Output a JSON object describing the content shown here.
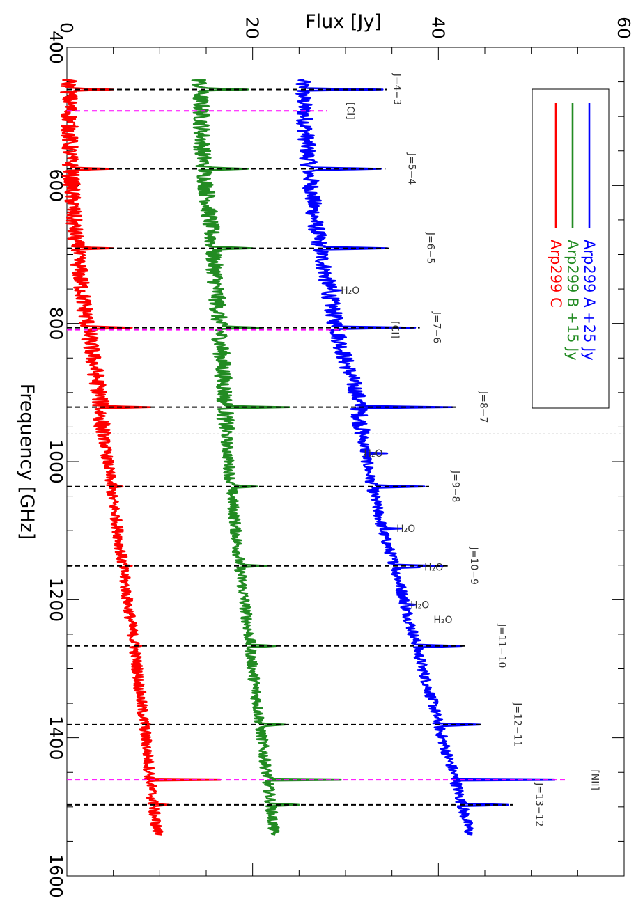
{
  "chart_data": {
    "type": "line",
    "orientation": "rotated 90 degrees clockwise (frequency runs top to bottom, flux runs left to right)",
    "xlabel": "Frequency [GHz]",
    "ylabel": "Flux [Jy]",
    "xlim": [
      400,
      1600
    ],
    "ylim": [
      0,
      60
    ],
    "x_ticks": [
      "400",
      "600",
      "800",
      "1000",
      "1200",
      "1400",
      "1600"
    ],
    "y_ticks": [
      "0",
      "20",
      "40",
      "60"
    ],
    "grid": false,
    "legend_position": "top-right",
    "series": [
      {
        "name": "Arp299 A +25 Jy",
        "color": "#0000ff",
        "offset": 25,
        "x": [
          450,
          500,
          550,
          600,
          650,
          700,
          750,
          800,
          850,
          900,
          950,
          1000,
          1050,
          1100,
          1150,
          1200,
          1250,
          1300,
          1350,
          1400,
          1450,
          1500,
          1540
        ],
        "y": [
          25.3,
          25.6,
          25.9,
          26.3,
          26.7,
          27.4,
          28.2,
          28.9,
          29.9,
          31.2,
          31.7,
          32.3,
          33.1,
          34.0,
          35.3,
          36.3,
          37.3,
          38.3,
          39.4,
          40.4,
          41.6,
          42.6,
          43.4
        ]
      },
      {
        "name": "Arp299 B +15 Jy",
        "color": "#228b22",
        "offset": 15,
        "x": [
          450,
          500,
          550,
          600,
          650,
          700,
          750,
          800,
          850,
          900,
          950,
          1000,
          1050,
          1100,
          1150,
          1200,
          1250,
          1300,
          1350,
          1400,
          1450,
          1500,
          1540
        ],
        "y": [
          14.3,
          14.5,
          14.6,
          15.0,
          15.4,
          15.8,
          16.1,
          16.4,
          16.7,
          17.0,
          17.1,
          17.4,
          17.8,
          18.2,
          18.6,
          19.1,
          19.6,
          20.0,
          20.5,
          21.0,
          21.5,
          22.0,
          22.3
        ]
      },
      {
        "name": "Arp299 C",
        "color": "#ff0000",
        "offset": 0,
        "x": [
          450,
          500,
          550,
          600,
          650,
          700,
          750,
          800,
          850,
          900,
          950,
          1000,
          1050,
          1100,
          1150,
          1200,
          1250,
          1300,
          1350,
          1400,
          1450,
          1500,
          1540
        ],
        "y": [
          0.2,
          0.3,
          0.3,
          0.5,
          0.7,
          1.1,
          1.6,
          2.2,
          2.8,
          3.5,
          3.8,
          4.4,
          4.9,
          5.5,
          6.0,
          6.5,
          7.1,
          7.6,
          8.0,
          8.5,
          8.9,
          9.3,
          9.8
        ]
      }
    ],
    "co_lines": [
      {
        "label": "J=4−3",
        "freq": 461,
        "peaks": {
          "A": 34.0,
          "B": 19.5,
          "C": 5.0
        },
        "label_flux": 35.2
      },
      {
        "label": "J=5−4",
        "freq": 576,
        "peaks": {
          "A": 33.8,
          "B": 19.5,
          "C": 5.0
        },
        "label_flux": 36.8
      },
      {
        "label": "J=6−5",
        "freq": 691,
        "peaks": {
          "A": 34.5,
          "B": 20.0,
          "C": 5.0
        },
        "label_flux": 38.8
      },
      {
        "label": "J=7−6",
        "freq": 806,
        "peaks": {
          "A": 37.5,
          "B": 21.0,
          "C": 7.0
        },
        "label_flux": 39.5
      },
      {
        "label": "J=8−7",
        "freq": 921,
        "peaks": {
          "A": 41.5,
          "B": 24.0,
          "C": 9.0
        },
        "label_flux": 44.5
      },
      {
        "label": "J=9−8",
        "freq": 1036,
        "peaks": {
          "A": 38.5,
          "B": 20.5,
          "C": 6.0
        },
        "label_flux": 41.5
      },
      {
        "label": "J=10−9",
        "freq": 1151,
        "peaks": {
          "A": 40.5,
          "B": 21.5,
          "C": 7.0
        },
        "label_flux": 43.5
      },
      {
        "label": "J=11−10",
        "freq": 1267,
        "peaks": {
          "A": 42.5,
          "B": 22.5,
          "C": 8.0
        },
        "label_flux": 46.5
      },
      {
        "label": "J=12−11",
        "freq": 1381,
        "peaks": {
          "A": 44.5,
          "B": 23.5,
          "C": 9.0
        },
        "label_flux": 48.2
      },
      {
        "label": "J=13−12",
        "freq": 1497,
        "peaks": {
          "A": 47.5,
          "B": 25.0,
          "C": 11.0
        },
        "label_flux": 50.5
      }
    ],
    "atomic_lines": [
      {
        "label": "[CI]",
        "freq": 492,
        "label_flux": 30.2,
        "peak_flux": 28.0
      },
      {
        "label": "[CI]",
        "freq": 809,
        "label_flux": 35.0,
        "peak_flux": 30.0
      },
      {
        "label": "[NII]",
        "freq": 1461,
        "label_flux": 56.5,
        "peak_flux": 54.0
      }
    ],
    "water_lines": [
      {
        "label": "H₂O",
        "freq": 752,
        "label_flux": 30.5,
        "peak_flux": 29.5
      },
      {
        "label": "H₂O",
        "freq": 988,
        "label_flux": 33.0,
        "peak_flux": 34.5
      },
      {
        "label": "H₂O",
        "freq": 1097,
        "label_flux": 36.5,
        "peak_flux": 36.0
      },
      {
        "label": "H₂O",
        "freq": 1153,
        "label_flux": 39.5,
        "peak_flux": 38.0
      },
      {
        "label": "H₂O",
        "freq": 1207,
        "label_flux": 38.0,
        "peak_flux": 37.5
      },
      {
        "label": "H₂O",
        "freq": 1229,
        "label_flux": 40.5,
        "peak_flux": 37.0
      }
    ],
    "divider_freq": 960,
    "colors": {
      "co": "#000000",
      "atomic": "#ff00ff",
      "water": "#00e5e5"
    }
  }
}
